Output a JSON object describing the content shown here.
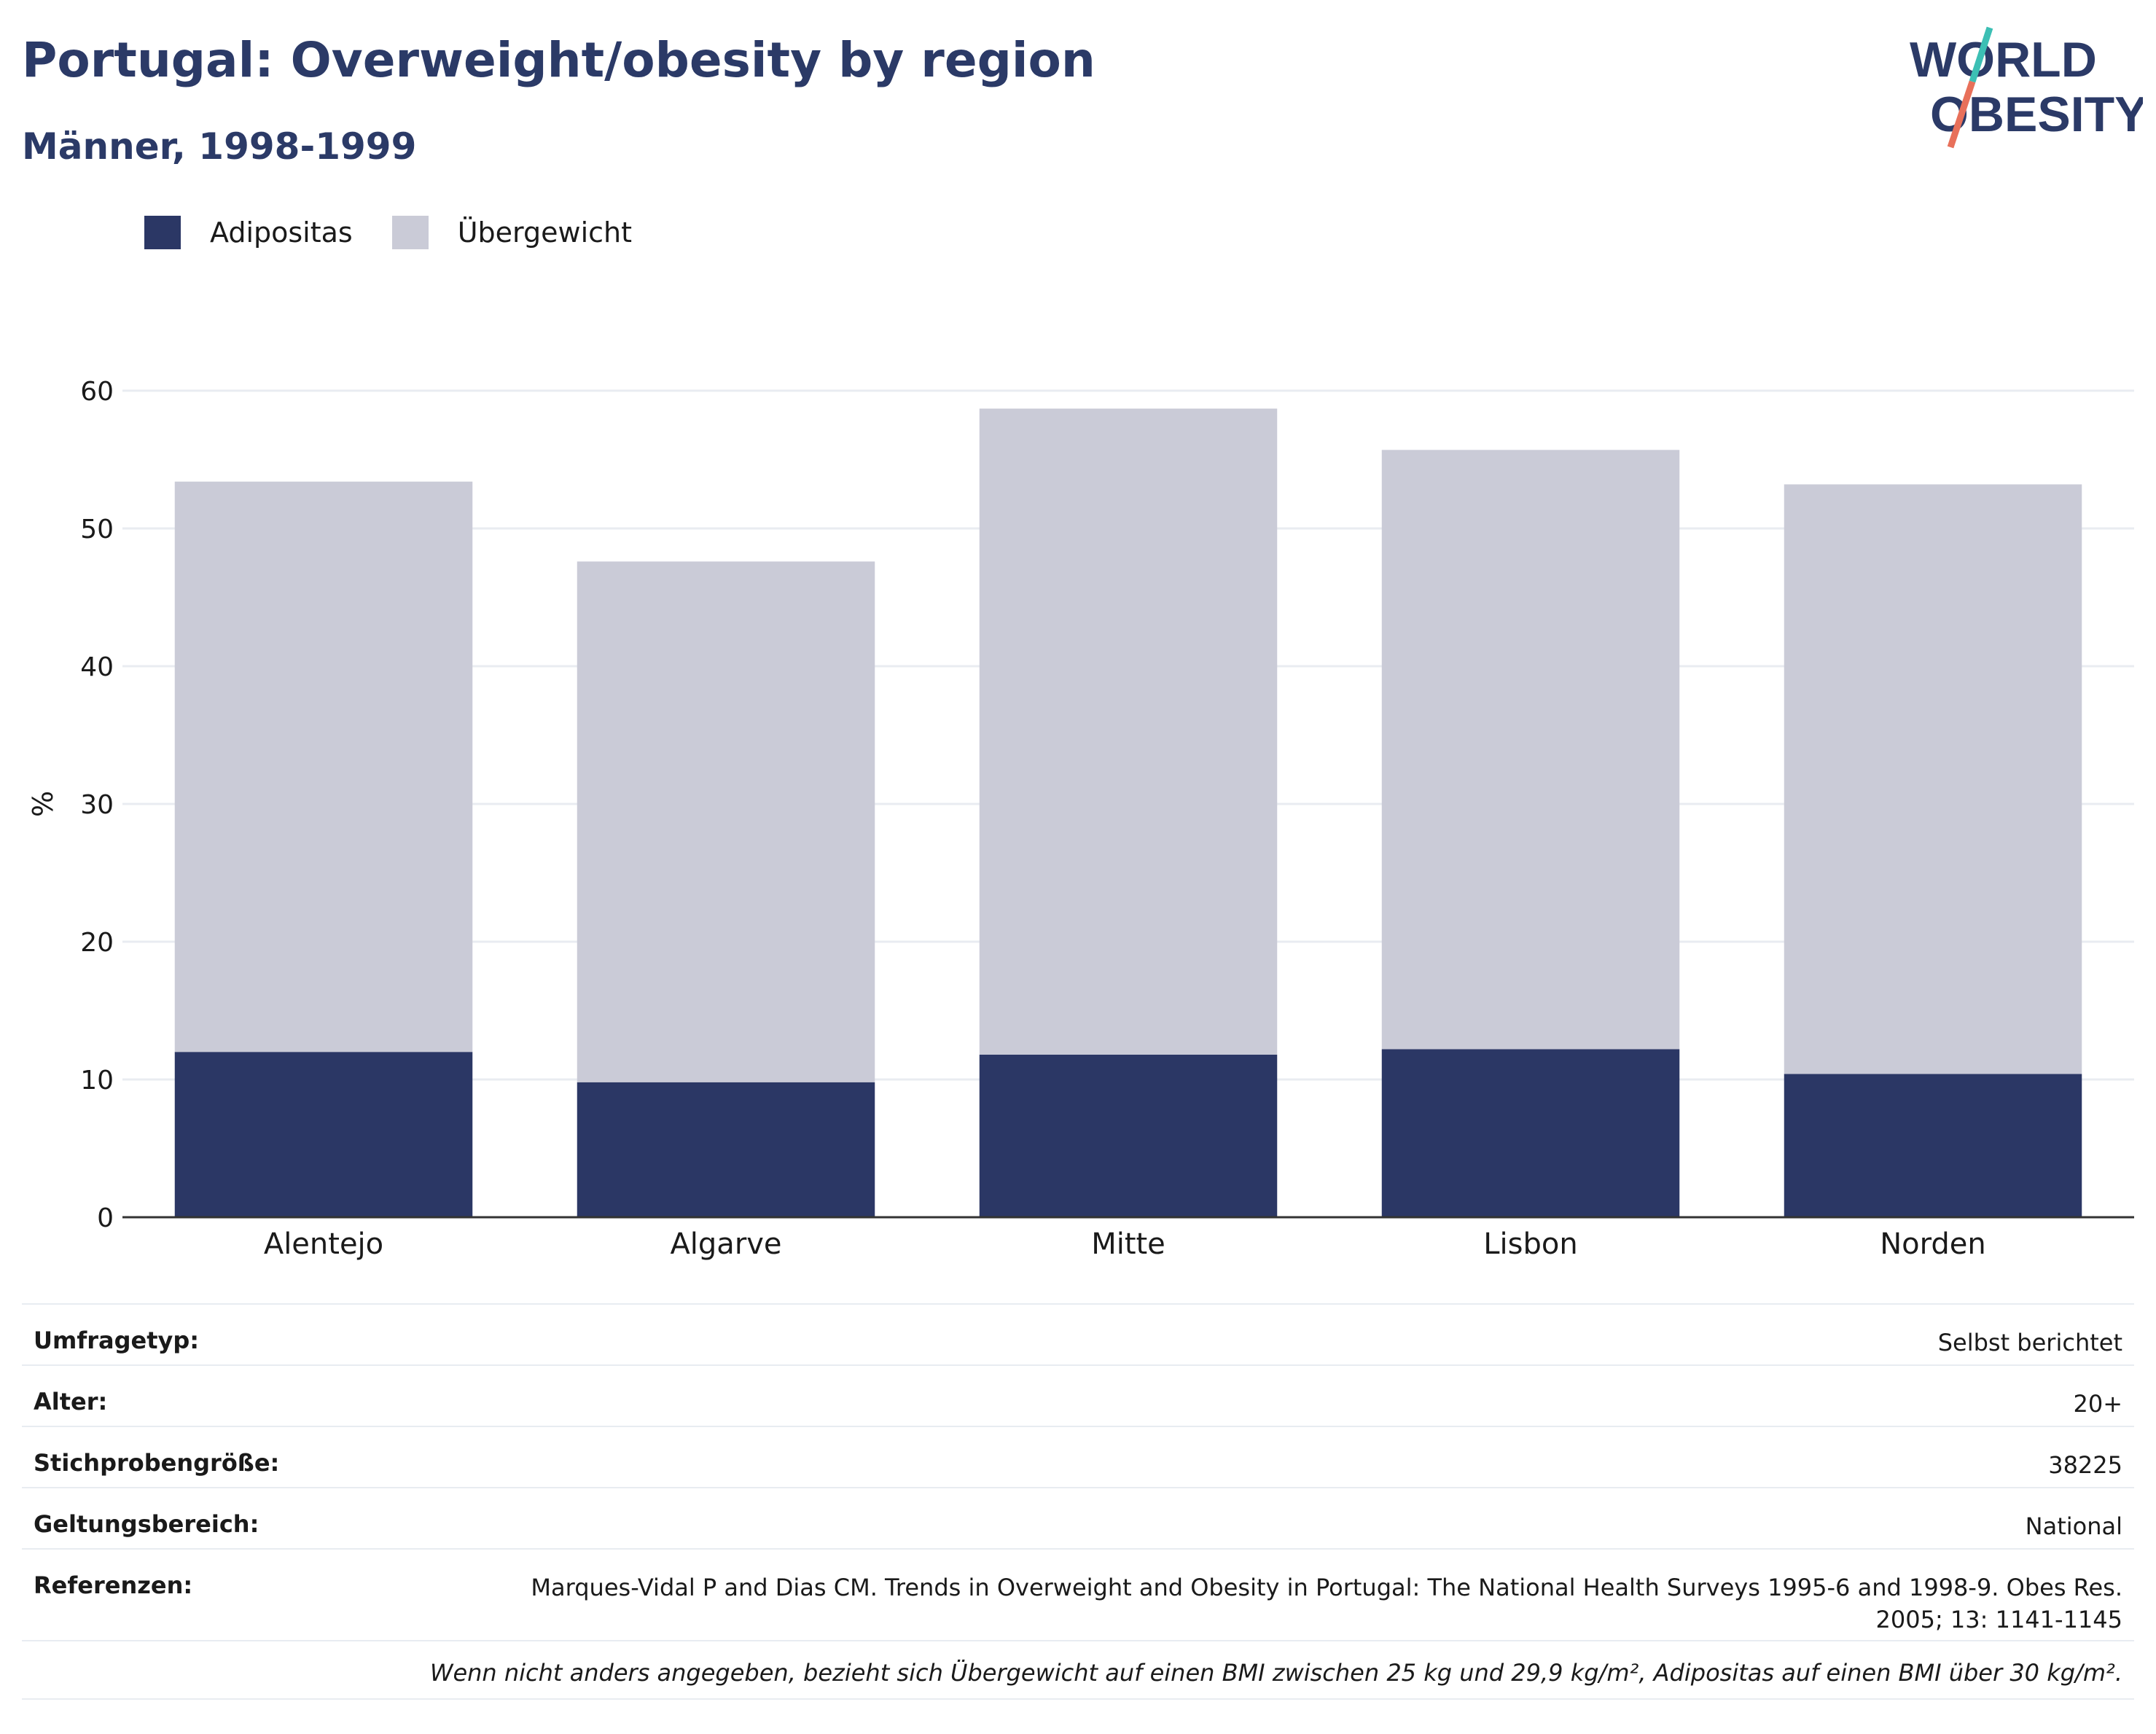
{
  "header": {
    "title": "Portugal: Overweight/obesity by region",
    "subtitle": "Männer, 1998-1999"
  },
  "logo": {
    "line1": "WORLD",
    "line2": "OBESITY"
  },
  "legend": [
    {
      "label": "Adipositas",
      "color": "#2b3765"
    },
    {
      "label": "Übergewicht",
      "color": "#cacbd7"
    }
  ],
  "chart_data": {
    "type": "bar",
    "stacked": true,
    "categories": [
      "Alentejo",
      "Algarve",
      "Mitte",
      "Lisbon",
      "Norden"
    ],
    "series": [
      {
        "name": "Adipositas",
        "values": [
          12.0,
          9.8,
          11.8,
          12.2,
          10.4
        ],
        "color": "#2b3765"
      },
      {
        "name": "Übergewicht",
        "values": [
          41.4,
          37.8,
          46.9,
          43.5,
          42.8
        ],
        "color": "#cacbd7"
      }
    ],
    "ylabel": "%",
    "ylim": [
      0,
      60
    ],
    "yticks": [
      0,
      10,
      20,
      30,
      40,
      50,
      60
    ],
    "grid": true,
    "legend_position": "top-left"
  },
  "meta": {
    "rows": [
      {
        "key": "Umfragetyp:",
        "value": "Selbst berichtet"
      },
      {
        "key": "Alter:",
        "value": "20+"
      },
      {
        "key": "Stichprobengröße:",
        "value": "38225"
      },
      {
        "key": "Geltungsbereich:",
        "value": "National"
      },
      {
        "key": "Referenzen:",
        "value": "Marques-Vidal P and Dias CM. Trends in Overweight and Obesity in Portugal: The National Health Surveys 1995-6 and 1998-9. Obes Res. 2005; 13: 1141-1145"
      }
    ],
    "note": "Wenn nicht anders angegeben, bezieht sich Übergewicht auf einen BMI zwischen 25 kg und 29,9 kg/m², Adipositas auf einen BMI über 30 kg/m²."
  }
}
